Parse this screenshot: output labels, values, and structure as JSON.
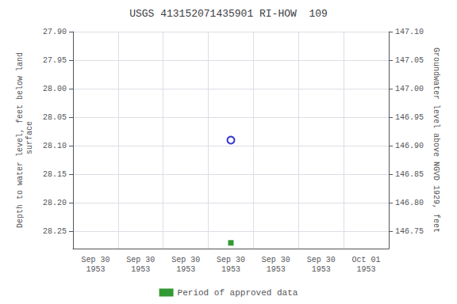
{
  "chart_data": {
    "type": "scatter",
    "title": "USGS 413152071435901 RI-HOW  109",
    "ylabel": "Depth to water level, feet below land\n surface",
    "y2label": "Groundwater level above NGVD 1929, feet",
    "categories": [
      "Sep 30\n1953",
      "Sep 30\n1953",
      "Sep 30\n1953",
      "Sep 30\n1953",
      "Sep 30\n1953",
      "Sep 30\n1953",
      "Oct 01\n1953"
    ],
    "series": [
      {
        "color": "#0000cc",
        "marker": "open_circle",
        "values": [
          null,
          null,
          null,
          28.09,
          null,
          null,
          null
        ]
      },
      {
        "name": "Period of approved data",
        "color": "#008000",
        "marker": "square",
        "values": [
          null,
          null,
          null,
          28.27,
          null,
          null,
          null
        ]
      }
    ],
    "ylim": [
      28.28,
      27.9
    ],
    "yticks": [
      {
        "value": 27.9,
        "label": "27.90"
      },
      27.95,
      {
        "value": 28.0,
        "label": "28.00"
      },
      28.05,
      {
        "value": 28.1,
        "label": "28.10"
      },
      28.15,
      {
        "value": 28.2,
        "label": "28.20"
      },
      28.25
    ],
    "y2lim": [
      146.72,
      147.1
    ],
    "y2ticks": [
      {
        "value": 147.1,
        "label": "147.10"
      },
      147.05,
      {
        "value": 147.0,
        "label": "147.00"
      },
      146.95,
      {
        "value": 146.9,
        "label": "146.90"
      },
      146.85,
      {
        "value": 146.8,
        "label": "146.80"
      },
      146.75
    ],
    "grid": true,
    "legend": "bottom"
  }
}
